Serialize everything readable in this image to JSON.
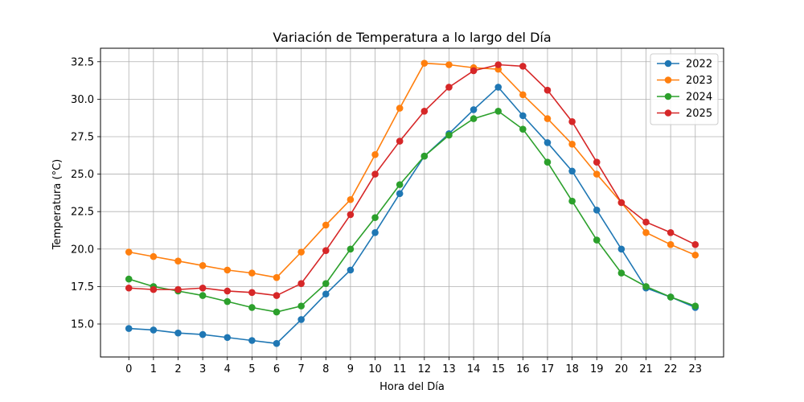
{
  "chart_data": {
    "type": "line",
    "title": "Variación de Temperatura a lo largo del Día",
    "xlabel": "Hora del Día",
    "ylabel": "Temperatura (°C)",
    "x": [
      0,
      1,
      2,
      3,
      4,
      5,
      6,
      7,
      8,
      9,
      10,
      11,
      12,
      13,
      14,
      15,
      16,
      17,
      18,
      19,
      20,
      21,
      22,
      23
    ],
    "x_tick_labels": [
      "0",
      "1",
      "2",
      "3",
      "4",
      "5",
      "6",
      "7",
      "8",
      "9",
      "10",
      "11",
      "12",
      "13",
      "14",
      "15",
      "16",
      "17",
      "18",
      "19",
      "20",
      "21",
      "22",
      "23"
    ],
    "y_ticks": [
      15.0,
      17.5,
      20.0,
      22.5,
      25.0,
      27.5,
      30.0,
      32.5
    ],
    "y_tick_labels": [
      "15.0",
      "17.5",
      "20.0",
      "22.5",
      "25.0",
      "27.5",
      "30.0",
      "32.5"
    ],
    "xlim": [
      -1.15,
      24.15
    ],
    "ylim": [
      12.8,
      33.4
    ],
    "grid": true,
    "legend_position": "top-right",
    "markers": "circle",
    "series": [
      {
        "name": "2022",
        "color": "#1f77b4",
        "values": [
          14.7,
          14.6,
          14.4,
          14.3,
          14.1,
          13.9,
          13.7,
          15.3,
          17.0,
          18.6,
          21.1,
          23.7,
          26.2,
          27.7,
          29.3,
          30.8,
          28.9,
          27.1,
          25.2,
          22.6,
          20.0,
          17.4,
          16.8,
          16.1
        ]
      },
      {
        "name": "2023",
        "color": "#ff7f0e",
        "values": [
          19.8,
          19.5,
          19.2,
          18.9,
          18.6,
          18.4,
          18.1,
          19.8,
          21.6,
          23.3,
          26.3,
          29.4,
          32.4,
          32.3,
          32.1,
          32.0,
          30.3,
          28.7,
          27.0,
          25.0,
          23.1,
          21.1,
          20.3,
          19.6
        ]
      },
      {
        "name": "2024",
        "color": "#2ca02c",
        "values": [
          18.0,
          17.5,
          17.2,
          16.9,
          16.5,
          16.1,
          15.8,
          16.2,
          17.7,
          20.0,
          22.1,
          24.3,
          26.2,
          27.6,
          28.7,
          29.2,
          28.0,
          25.8,
          23.2,
          20.6,
          18.4,
          17.5,
          16.8,
          16.2
        ]
      },
      {
        "name": "2025",
        "color": "#d62728",
        "values": [
          17.4,
          17.3,
          17.3,
          17.4,
          17.2,
          17.1,
          16.9,
          17.7,
          19.9,
          22.3,
          25.0,
          27.2,
          29.2,
          30.8,
          31.9,
          32.3,
          32.2,
          30.6,
          28.5,
          25.8,
          23.1,
          21.8,
          21.1,
          20.3
        ]
      }
    ]
  }
}
